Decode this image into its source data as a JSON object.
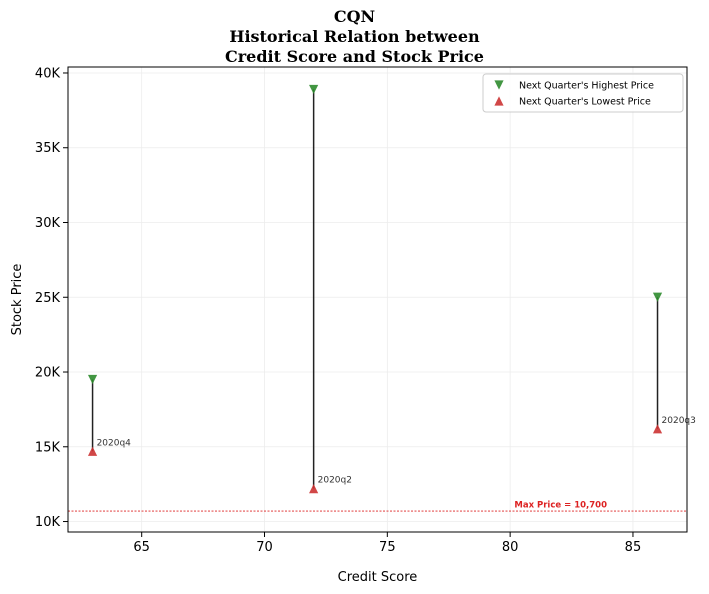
{
  "chart_data": {
    "type": "scatter",
    "title_lines": [
      "CQN",
      "Historical Relation between",
      "Credit Score and Stock Price"
    ],
    "xlabel": "Credit Score",
    "ylabel": "Stock Price",
    "xlim": [
      62,
      87.2
    ],
    "ylim": [
      9300,
      40400
    ],
    "xticks": [
      65,
      70,
      75,
      80,
      85
    ],
    "yticks": [
      10000,
      15000,
      20000,
      25000,
      30000,
      35000,
      40000
    ],
    "ytick_labels": [
      "10K",
      "15K",
      "20K",
      "25K",
      "30K",
      "35K",
      "40K"
    ],
    "grid": true,
    "legend_position": "top-right",
    "series": [
      {
        "name": "Next Quarter's Highest Price",
        "marker": "triangle-down",
        "color": "#2e8b2e",
        "points": [
          {
            "x": 63,
            "y": 19500
          },
          {
            "x": 72,
            "y": 38900
          },
          {
            "x": 86,
            "y": 25000
          }
        ]
      },
      {
        "name": "Next Quarter's Lowest Price",
        "marker": "triangle-up",
        "color": "#cc3333",
        "points": [
          {
            "x": 63,
            "y": 14700
          },
          {
            "x": 72,
            "y": 12200
          },
          {
            "x": 86,
            "y": 16200
          }
        ]
      }
    ],
    "ranges": [
      {
        "x": 63,
        "high": 19500,
        "low": 14700,
        "label": "2020q4"
      },
      {
        "x": 72,
        "high": 38900,
        "low": 12200,
        "label": "2020q2"
      },
      {
        "x": 86,
        "high": 25000,
        "low": 16200,
        "label": "2020q3"
      }
    ],
    "reference_line": {
      "y": 10700,
      "label": "Max Price = 10,700",
      "color": "#dd2222"
    }
  }
}
